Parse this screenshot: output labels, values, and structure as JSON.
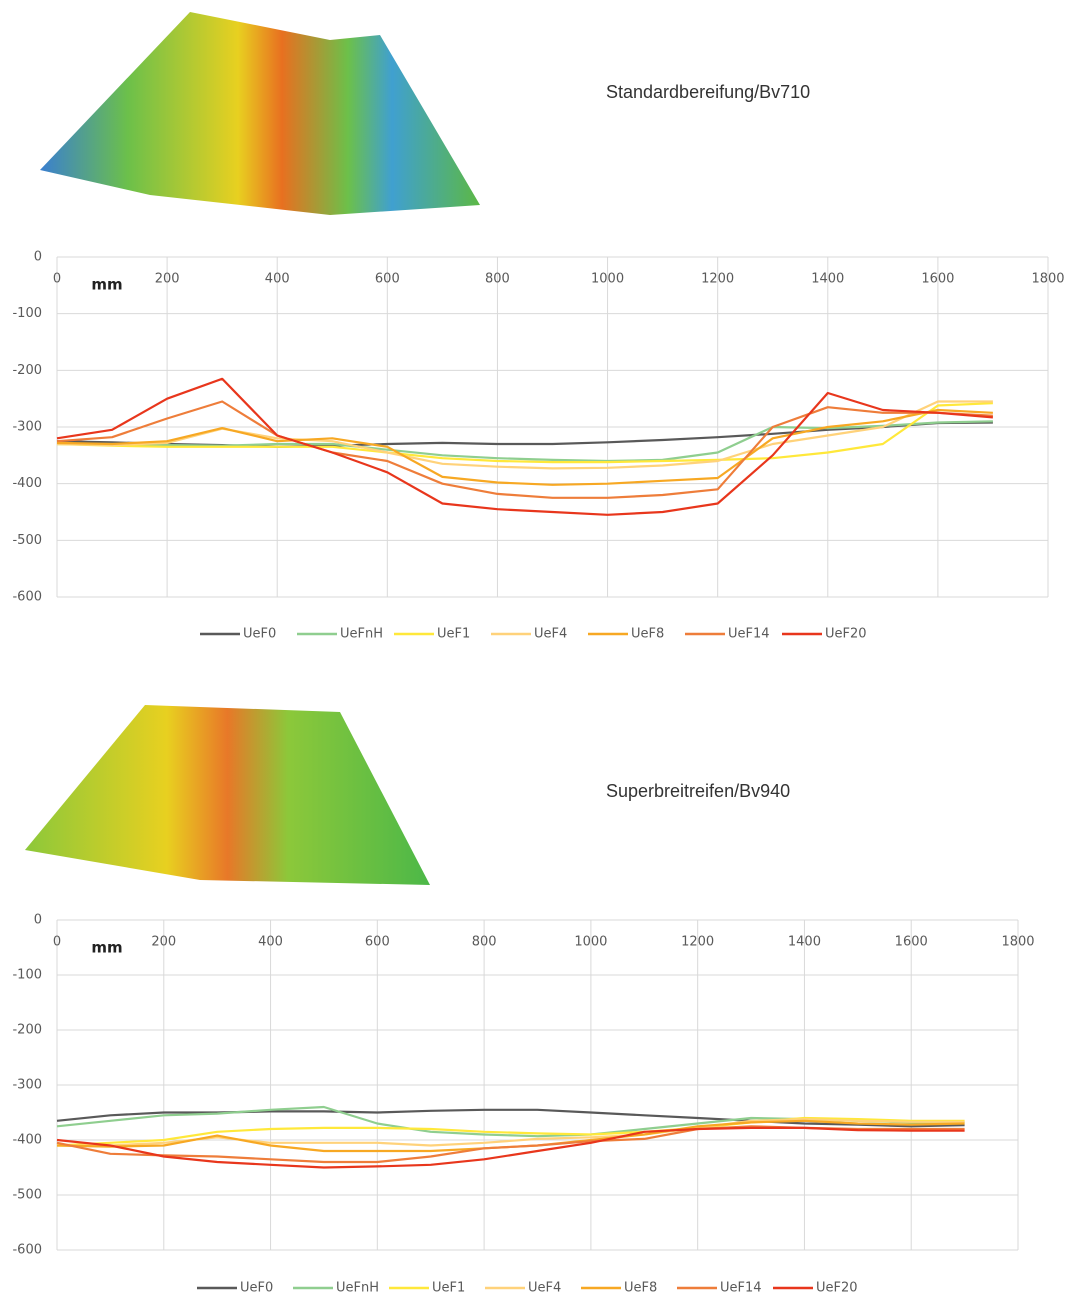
{
  "chart_data": [
    {
      "type": "line",
      "title": "Standardbereifung/Bv710",
      "annotation": "mm",
      "x": [
        0,
        100,
        200,
        300,
        400,
        500,
        600,
        700,
        800,
        900,
        1000,
        1100,
        1200,
        1300,
        1400,
        1500,
        1600,
        1700
      ],
      "xlim": [
        0,
        1800
      ],
      "xticks": [
        0,
        200,
        400,
        600,
        800,
        1000,
        1200,
        1400,
        1600,
        1800
      ],
      "ylim": [
        -600,
        0
      ],
      "yticks": [
        0,
        -100,
        -200,
        -300,
        -400,
        -500,
        -600
      ],
      "grid": true,
      "series": [
        {
          "name": "UeF0",
          "color": "#595959",
          "values": [
            -325,
            -327,
            -330,
            -332,
            -335,
            -333,
            -330,
            -328,
            -330,
            -330,
            -327,
            -323,
            -318,
            -312,
            -305,
            -300,
            -293,
            -292
          ]
        },
        {
          "name": "UeFnH",
          "color": "#8fce8f",
          "values": [
            -330,
            -330,
            -332,
            -333,
            -330,
            -330,
            -340,
            -350,
            -355,
            -358,
            -360,
            -358,
            -345,
            -300,
            -302,
            -298,
            -292,
            -290
          ]
        },
        {
          "name": "UeF1",
          "color": "#ffe83a",
          "values": [
            -330,
            -333,
            -335,
            -335,
            -335,
            -335,
            -345,
            -355,
            -360,
            -362,
            -362,
            -360,
            -358,
            -355,
            -345,
            -330,
            -262,
            -258
          ]
        },
        {
          "name": "UeF4",
          "color": "#ffd27a",
          "values": [
            -330,
            -332,
            -328,
            -303,
            -320,
            -325,
            -345,
            -365,
            -370,
            -373,
            -372,
            -368,
            -360,
            -330,
            -315,
            -300,
            -255,
            -255
          ]
        },
        {
          "name": "UeF8",
          "color": "#f7a823",
          "values": [
            -328,
            -330,
            -325,
            -302,
            -325,
            -320,
            -335,
            -388,
            -398,
            -402,
            -400,
            -395,
            -390,
            -320,
            -300,
            -290,
            -270,
            -275
          ]
        },
        {
          "name": "UeF14",
          "color": "#ee7d3a",
          "values": [
            -325,
            -318,
            -285,
            -255,
            -315,
            -345,
            -360,
            -400,
            -418,
            -425,
            -425,
            -420,
            -410,
            -300,
            -265,
            -275,
            -275,
            -280
          ]
        },
        {
          "name": "UeF20",
          "color": "#e8361c",
          "values": [
            -320,
            -305,
            -250,
            -215,
            -315,
            -345,
            -380,
            -435,
            -445,
            -450,
            -455,
            -450,
            -435,
            -350,
            -240,
            -270,
            -275,
            -283
          ]
        }
      ]
    },
    {
      "type": "line",
      "title": "Superbreitreifen/Bv940",
      "annotation": "mm",
      "x": [
        0,
        100,
        200,
        300,
        400,
        500,
        600,
        700,
        800,
        900,
        1000,
        1100,
        1200,
        1300,
        1400,
        1500,
        1600,
        1700
      ],
      "xlim": [
        0,
        1800
      ],
      "xticks": [
        0,
        200,
        400,
        600,
        800,
        1000,
        1200,
        1400,
        1600,
        1800
      ],
      "ylim": [
        -600,
        0
      ],
      "yticks": [
        0,
        -100,
        -200,
        -300,
        -400,
        -500,
        -600
      ],
      "grid": true,
      "series": [
        {
          "name": "UeF0",
          "color": "#595959",
          "values": [
            -365,
            -355,
            -350,
            -350,
            -348,
            -348,
            -350,
            -347,
            -345,
            -345,
            -350,
            -355,
            -360,
            -365,
            -370,
            -372,
            -375,
            -373
          ]
        },
        {
          "name": "UeFnH",
          "color": "#8fce8f",
          "values": [
            -375,
            -365,
            -355,
            -352,
            -345,
            -340,
            -370,
            -385,
            -390,
            -393,
            -390,
            -380,
            -370,
            -360,
            -362,
            -365,
            -368,
            -368
          ]
        },
        {
          "name": "UeF1",
          "color": "#ffe83a",
          "values": [
            -410,
            -405,
            -400,
            -385,
            -380,
            -378,
            -378,
            -380,
            -385,
            -388,
            -390,
            -385,
            -378,
            -368,
            -360,
            -362,
            -365,
            -365
          ]
        },
        {
          "name": "UeF4",
          "color": "#ffd27a",
          "values": [
            -410,
            -410,
            -405,
            -395,
            -405,
            -405,
            -405,
            -410,
            -405,
            -398,
            -395,
            -390,
            -378,
            -365,
            -362,
            -365,
            -367,
            -367
          ]
        },
        {
          "name": "UeF8",
          "color": "#f7a823",
          "values": [
            -410,
            -412,
            -410,
            -392,
            -410,
            -420,
            -420,
            -420,
            -415,
            -410,
            -400,
            -390,
            -375,
            -368,
            -365,
            -370,
            -372,
            -370
          ]
        },
        {
          "name": "UeF14",
          "color": "#ee7d3a",
          "values": [
            -405,
            -425,
            -428,
            -430,
            -435,
            -440,
            -440,
            -430,
            -415,
            -410,
            -402,
            -398,
            -380,
            -375,
            -378,
            -380,
            -380,
            -380
          ]
        },
        {
          "name": "UeF20",
          "color": "#e8361c",
          "values": [
            -400,
            -410,
            -430,
            -440,
            -445,
            -450,
            -448,
            -445,
            -435,
            -420,
            -405,
            -385,
            -380,
            -378,
            -378,
            -382,
            -383,
            -383
          ]
        }
      ]
    }
  ]
}
